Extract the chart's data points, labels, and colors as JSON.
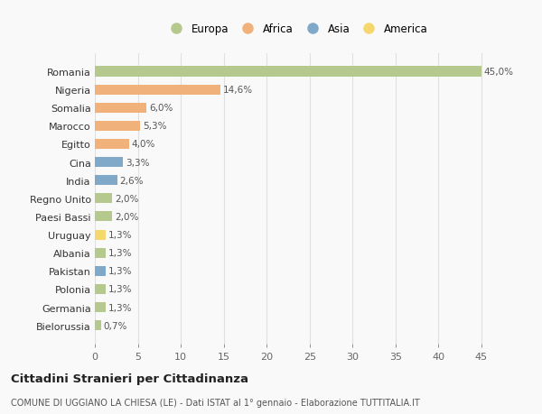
{
  "countries": [
    "Romania",
    "Nigeria",
    "Somalia",
    "Marocco",
    "Egitto",
    "Cina",
    "India",
    "Regno Unito",
    "Paesi Bassi",
    "Uruguay",
    "Albania",
    "Pakistan",
    "Polonia",
    "Germania",
    "Bielorussia"
  ],
  "values": [
    45.0,
    14.6,
    6.0,
    5.3,
    4.0,
    3.3,
    2.6,
    2.0,
    2.0,
    1.3,
    1.3,
    1.3,
    1.3,
    1.3,
    0.7
  ],
  "labels": [
    "45,0%",
    "14,6%",
    "6,0%",
    "5,3%",
    "4,0%",
    "3,3%",
    "2,6%",
    "2,0%",
    "2,0%",
    "1,3%",
    "1,3%",
    "1,3%",
    "1,3%",
    "1,3%",
    "0,7%"
  ],
  "colors": [
    "#b5c98e",
    "#f0b27a",
    "#f0b27a",
    "#f0b27a",
    "#f0b27a",
    "#7fa8c9",
    "#7fa8c9",
    "#b5c98e",
    "#b5c98e",
    "#f5d76e",
    "#b5c98e",
    "#7fa8c9",
    "#b5c98e",
    "#b5c98e",
    "#b5c98e"
  ],
  "legend_labels": [
    "Europa",
    "Africa",
    "Asia",
    "America"
  ],
  "legend_colors": [
    "#b5c98e",
    "#f0b27a",
    "#7fa8c9",
    "#f5d76e"
  ],
  "title": "Cittadini Stranieri per Cittadinanza",
  "subtitle": "COMUNE DI UGGIANO LA CHIESA (LE) - Dati ISTAT al 1° gennaio - Elaborazione TUTTITALIA.IT",
  "xlim": [
    0,
    47
  ],
  "xticks": [
    0,
    5,
    10,
    15,
    20,
    25,
    30,
    35,
    40,
    45
  ],
  "background_color": "#f9f9f9",
  "grid_color": "#e0e0e0",
  "bar_height": 0.55
}
